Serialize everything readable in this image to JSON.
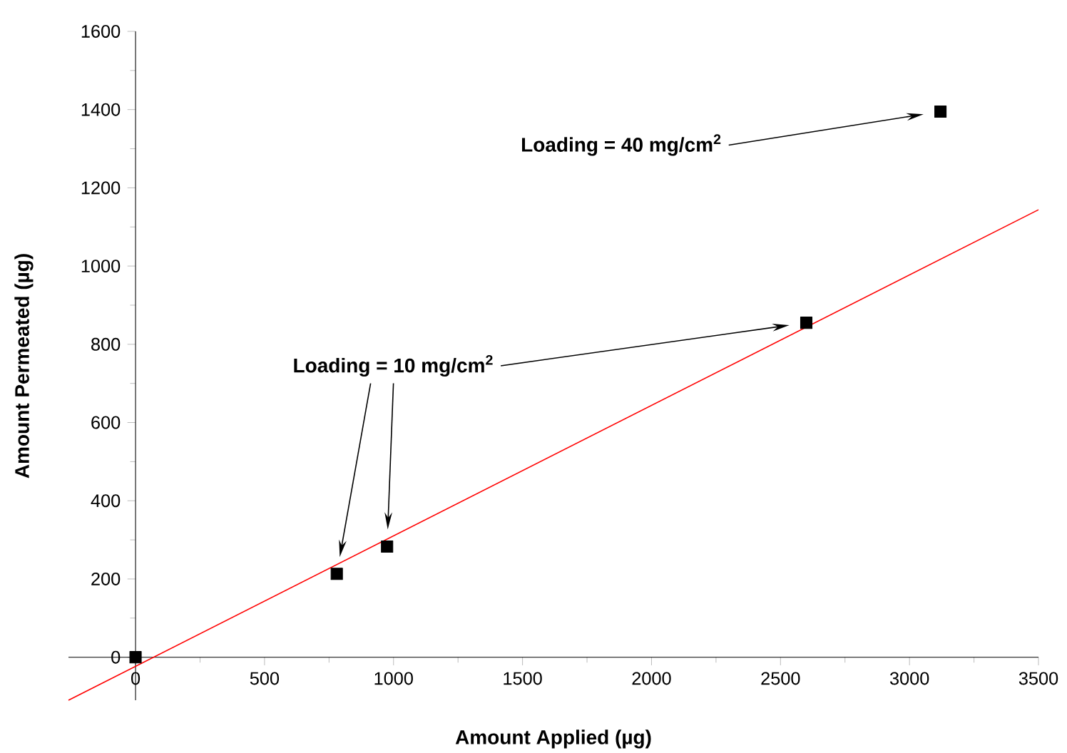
{
  "chart_data": {
    "type": "scatter",
    "xlabel": "Amount Applied (µg)",
    "ylabel": "Amount Permeated (µg)",
    "xlim": [
      -260,
      3500
    ],
    "ylim": [
      -110,
      1600
    ],
    "xticks": [
      0,
      500,
      1000,
      1500,
      2000,
      2500,
      3000,
      3500
    ],
    "yticks": [
      0,
      200,
      400,
      600,
      800,
      1000,
      1200,
      1400,
      1600
    ],
    "series": [
      {
        "type": "line",
        "x": [
          -260,
          3500
        ],
        "values": [
          -110,
          1144
        ],
        "color": "#ff0000",
        "marker": "none"
      },
      {
        "x": [
          0,
          780,
          975,
          2600,
          3120
        ],
        "values": [
          0,
          213,
          283,
          855,
          1395
        ],
        "color": "#000000",
        "marker": "square"
      }
    ],
    "annotations": [
      "Loading = 40 mg/cm$^{2}$",
      "Loading = 10 mg/cm$^{2}$"
    ]
  }
}
